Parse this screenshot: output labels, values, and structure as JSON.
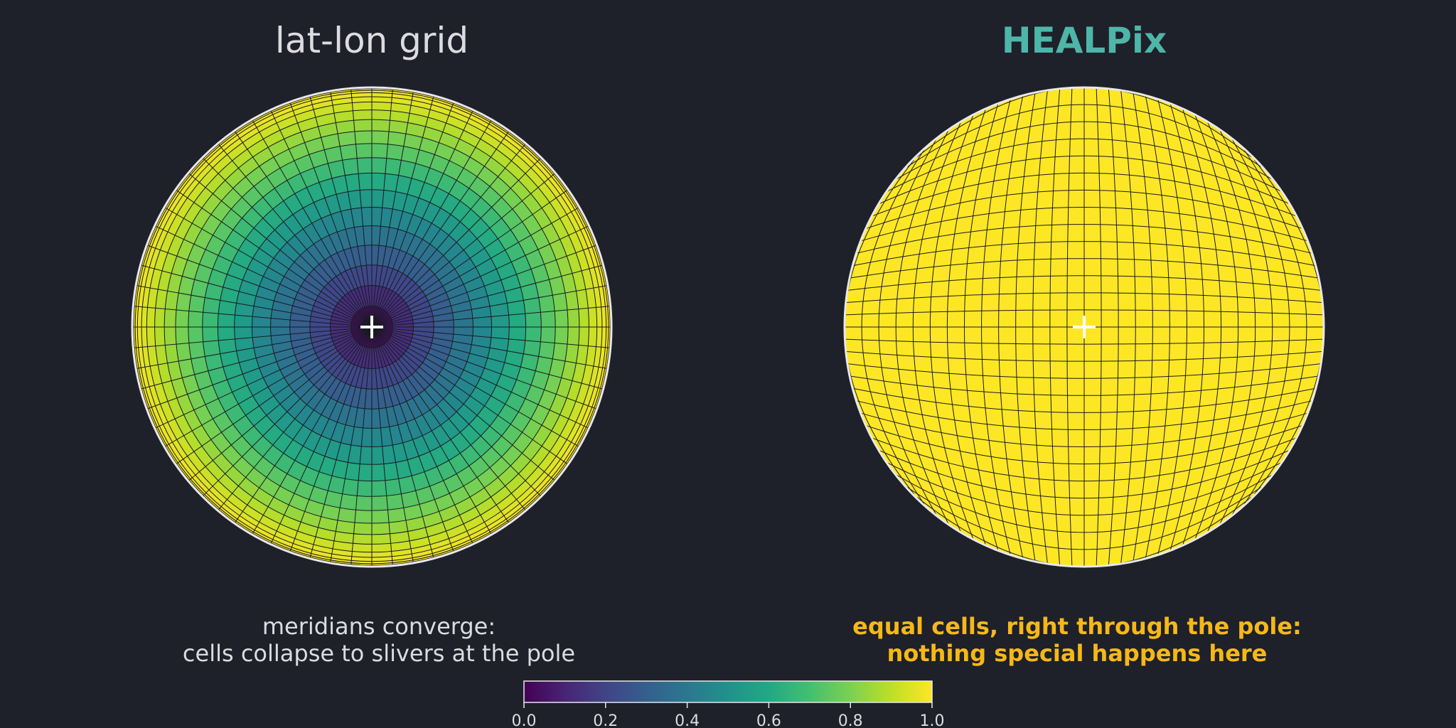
{
  "left_panel": {
    "title": "lat-lon grid",
    "caption_lines": [
      "meridians converge:",
      "cells collapse to slivers at the pole"
    ]
  },
  "right_panel": {
    "title": "HEALPix",
    "caption_lines": [
      "equal cells, right through the pole:",
      "nothing special happens here"
    ]
  },
  "colorbar": {
    "colormap": "viridis",
    "ticks": [
      "0.0",
      "0.2",
      "0.4",
      "0.6",
      "0.8",
      "1.0"
    ],
    "range": [
      0,
      1
    ]
  },
  "colors": {
    "background": "#1e202a",
    "text": "#dcdce0",
    "healpix_title": "#4db6a8",
    "healpix_caption": "#f5b819",
    "healpix_fill": "#fde725",
    "grid_line": "#1a1a22",
    "outline": "#e8e8ea",
    "pole_marker": "#ffffff"
  }
}
